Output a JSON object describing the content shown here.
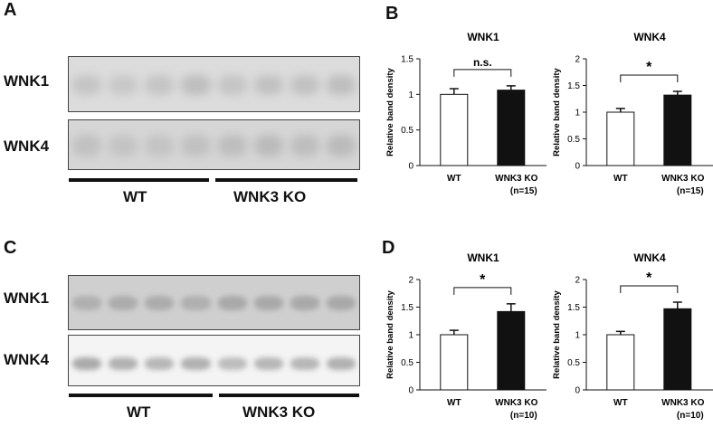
{
  "panels": {
    "A": "A",
    "B": "B",
    "C": "C",
    "D": "D"
  },
  "blot_labels": {
    "wnk1": "WNK1",
    "wnk4": "WNK4"
  },
  "group_labels": {
    "wt": "WT",
    "ko": "WNK3 KO"
  },
  "chart_data": [
    {
      "type": "bar",
      "panel": "B",
      "title": "WNK1",
      "ylabel": "Relative band density",
      "categories": [
        "WT",
        "WNK3 KO"
      ],
      "n_label": "(n=15)",
      "values": [
        1.0,
        1.06
      ],
      "errors": [
        0.08,
        0.06
      ],
      "bar_colors": [
        "#ffffff",
        "#111111"
      ],
      "ylim": [
        0,
        1.5
      ],
      "yticks": [
        "0",
        "0.5",
        "1",
        "1.5"
      ],
      "significance": "n.s."
    },
    {
      "type": "bar",
      "panel": "B",
      "title": "WNK4",
      "ylabel": "Relative band density",
      "categories": [
        "WT",
        "WNK3 KO"
      ],
      "n_label": "(n=15)",
      "values": [
        1.0,
        1.32
      ],
      "errors": [
        0.07,
        0.07
      ],
      "bar_colors": [
        "#ffffff",
        "#111111"
      ],
      "ylim": [
        0,
        2
      ],
      "yticks": [
        "0",
        "0.5",
        "1",
        "1.5",
        "2"
      ],
      "significance": "*"
    },
    {
      "type": "bar",
      "panel": "D",
      "title": "WNK1",
      "ylabel": "Relative band density",
      "categories": [
        "WT",
        "WNK3 KO"
      ],
      "n_label": "(n=10)",
      "values": [
        1.0,
        1.42
      ],
      "errors": [
        0.08,
        0.14
      ],
      "bar_colors": [
        "#ffffff",
        "#111111"
      ],
      "ylim": [
        0,
        2
      ],
      "yticks": [
        "0",
        "0.5",
        "1",
        "1.5",
        "2"
      ],
      "significance": "*"
    },
    {
      "type": "bar",
      "panel": "D",
      "title": "WNK4",
      "ylabel": "Relative band density",
      "categories": [
        "WT",
        "WNK3 KO"
      ],
      "n_label": "(n=10)",
      "values": [
        1.0,
        1.47
      ],
      "errors": [
        0.06,
        0.12
      ],
      "bar_colors": [
        "#ffffff",
        "#111111"
      ],
      "ylim": [
        0,
        2
      ],
      "yticks": [
        "0",
        "0.5",
        "1",
        "1.5",
        "2"
      ],
      "significance": "*"
    }
  ]
}
